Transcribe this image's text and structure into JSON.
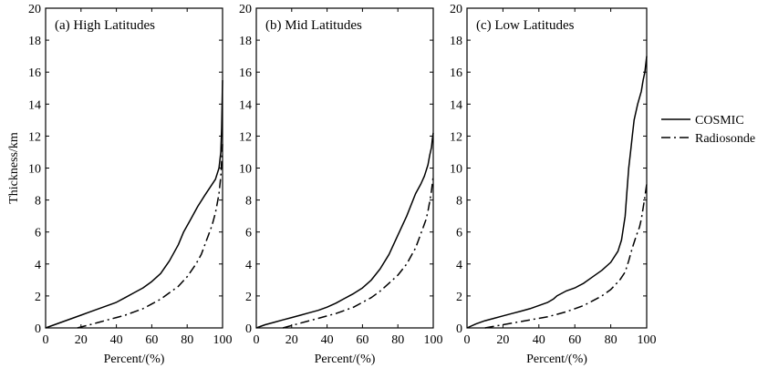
{
  "chart_data": [
    {
      "type": "line",
      "title": "(a) High Latitudes",
      "xlabel": "Percent/(%)",
      "ylabel": "Thickness/km",
      "xlim": [
        0,
        100
      ],
      "ylim": [
        0,
        20
      ],
      "xticks": [
        "0",
        "20",
        "40",
        "60",
        "80",
        "100"
      ],
      "yticks": [
        "0",
        "2",
        "4",
        "6",
        "8",
        "10",
        "12",
        "14",
        "16",
        "18",
        "20"
      ],
      "grid": false,
      "series": [
        {
          "name": "COSMIC",
          "style": "solid",
          "x": [
            0,
            5,
            10,
            15,
            20,
            25,
            30,
            35,
            40,
            45,
            50,
            55,
            60,
            65,
            70,
            75,
            78,
            82,
            86,
            90,
            93,
            96,
            98,
            99,
            99.5,
            100
          ],
          "y": [
            0,
            0.2,
            0.4,
            0.6,
            0.8,
            1.0,
            1.2,
            1.4,
            1.6,
            1.9,
            2.2,
            2.5,
            2.9,
            3.4,
            4.2,
            5.2,
            6.0,
            6.8,
            7.6,
            8.3,
            8.8,
            9.3,
            10.0,
            11.0,
            12.5,
            15.5
          ]
        },
        {
          "name": "Radiosonde",
          "style": "dash-dot",
          "x": [
            18,
            25,
            30,
            35,
            40,
            45,
            50,
            55,
            60,
            65,
            70,
            75,
            80,
            85,
            88,
            90,
            92,
            94,
            95,
            96,
            97,
            98,
            99,
            100
          ],
          "y": [
            0,
            0.2,
            0.35,
            0.5,
            0.65,
            0.8,
            1.0,
            1.2,
            1.5,
            1.8,
            2.2,
            2.6,
            3.2,
            4.0,
            4.6,
            5.2,
            5.8,
            6.4,
            6.8,
            7.2,
            7.8,
            8.4,
            9.5,
            11.5
          ]
        }
      ]
    },
    {
      "type": "line",
      "title": "(b) Mid Latitudes",
      "xlabel": "Percent/(%)",
      "ylabel": "",
      "xlim": [
        0,
        100
      ],
      "ylim": [
        0,
        20
      ],
      "xticks": [
        "0",
        "20",
        "40",
        "60",
        "80",
        "100"
      ],
      "yticks": [
        "0",
        "2",
        "4",
        "6",
        "8",
        "10",
        "12",
        "14",
        "16",
        "18",
        "20"
      ],
      "grid": false,
      "series": [
        {
          "name": "COSMIC",
          "style": "solid",
          "x": [
            0,
            5,
            10,
            15,
            20,
            25,
            30,
            35,
            40,
            45,
            50,
            55,
            60,
            65,
            70,
            75,
            80,
            85,
            90,
            93,
            95,
            97,
            98,
            99,
            99.5,
            100
          ],
          "y": [
            0,
            0.2,
            0.35,
            0.5,
            0.65,
            0.8,
            0.95,
            1.1,
            1.3,
            1.55,
            1.85,
            2.15,
            2.5,
            3.0,
            3.7,
            4.6,
            5.8,
            7.0,
            8.4,
            9.0,
            9.5,
            10.2,
            10.8,
            11.3,
            11.8,
            12.2
          ]
        },
        {
          "name": "Radiosonde",
          "style": "dash-dot",
          "x": [
            15,
            20,
            25,
            30,
            35,
            40,
            45,
            50,
            55,
            60,
            65,
            70,
            75,
            80,
            85,
            88,
            90,
            92,
            94,
            96,
            97,
            98,
            99,
            100
          ],
          "y": [
            0,
            0.15,
            0.3,
            0.45,
            0.6,
            0.75,
            0.9,
            1.1,
            1.3,
            1.6,
            1.9,
            2.3,
            2.8,
            3.3,
            4.0,
            4.6,
            5.0,
            5.6,
            6.2,
            6.8,
            7.3,
            7.9,
            8.6,
            9.5
          ]
        }
      ]
    },
    {
      "type": "line",
      "title": "(c) Low Latitudes",
      "xlabel": "Percent/(%)",
      "ylabel": "",
      "xlim": [
        0,
        100
      ],
      "ylim": [
        0,
        20
      ],
      "xticks": [
        "0",
        "20",
        "40",
        "60",
        "80",
        "100"
      ],
      "yticks": [
        "0",
        "2",
        "4",
        "6",
        "8",
        "10",
        "12",
        "14",
        "16",
        "18",
        "20"
      ],
      "grid": false,
      "series": [
        {
          "name": "COSMIC",
          "style": "solid",
          "x": [
            0,
            5,
            10,
            15,
            20,
            25,
            30,
            35,
            40,
            45,
            48,
            50,
            55,
            60,
            65,
            70,
            75,
            80,
            84,
            86,
            88,
            89,
            90,
            91,
            92,
            93,
            95,
            97,
            98,
            99,
            100
          ],
          "y": [
            0,
            0.25,
            0.45,
            0.6,
            0.75,
            0.9,
            1.05,
            1.2,
            1.4,
            1.6,
            1.8,
            2.0,
            2.3,
            2.5,
            2.8,
            3.2,
            3.6,
            4.1,
            4.8,
            5.5,
            7.0,
            8.5,
            10.0,
            11.0,
            12.0,
            13.0,
            14.0,
            14.8,
            15.5,
            16.0,
            17.0
          ]
        },
        {
          "name": "Radiosonde",
          "style": "dash-dot",
          "x": [
            10,
            15,
            20,
            25,
            30,
            35,
            40,
            45,
            50,
            55,
            60,
            65,
            70,
            75,
            80,
            85,
            88,
            90,
            92,
            94,
            95,
            96,
            97,
            98,
            99,
            100
          ],
          "y": [
            0,
            0.1,
            0.2,
            0.3,
            0.4,
            0.5,
            0.6,
            0.7,
            0.85,
            1.0,
            1.2,
            1.4,
            1.7,
            2.0,
            2.4,
            3.0,
            3.5,
            4.2,
            5.0,
            5.7,
            6.0,
            6.3,
            6.8,
            7.5,
            8.2,
            9.0
          ]
        }
      ]
    }
  ],
  "legend": {
    "placement": "right",
    "entries": [
      {
        "label": "COSMIC",
        "style": "solid"
      },
      {
        "label": "Radiosonde",
        "style": "dash-dot"
      }
    ]
  }
}
